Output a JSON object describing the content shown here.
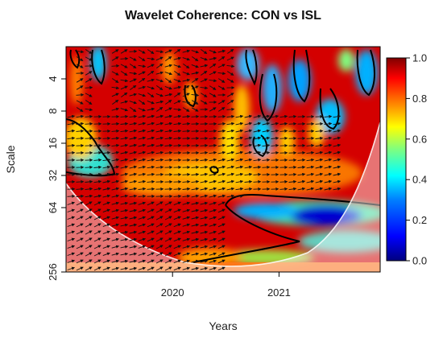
{
  "chart_data": {
    "type": "heatmap",
    "title": "Wavelet Coherence: CON vs ISL",
    "xlabel": "Years",
    "ylabel": "Scale",
    "x_range": [
      2019.0,
      2021.95
    ],
    "x_ticks": [
      {
        "value": 2020,
        "label": "2020"
      },
      {
        "value": 2021,
        "label": "2021"
      }
    ],
    "y_scale": "log2",
    "y_reversed": true,
    "y_range": [
      2,
      256
    ],
    "y_ticks": [
      {
        "value": 4,
        "label": "4"
      },
      {
        "value": 8,
        "label": "8"
      },
      {
        "value": 16,
        "label": "16"
      },
      {
        "value": 32,
        "label": "32"
      },
      {
        "value": 64,
        "label": "64"
      },
      {
        "value": 256,
        "label": "256"
      }
    ],
    "colorbar": {
      "range": [
        0.0,
        1.0
      ],
      "ticks": [
        "0.0",
        "0.2",
        "0.4",
        "0.6",
        "0.8",
        "1.0"
      ],
      "colors": [
        "#00007f",
        "#0000ff",
        "#007fff",
        "#00ffff",
        "#7fff7f",
        "#ffff00",
        "#ff7f00",
        "#ff0000",
        "#7f0000"
      ]
    },
    "cone_of_influence": true,
    "phase_arrows": true
  }
}
